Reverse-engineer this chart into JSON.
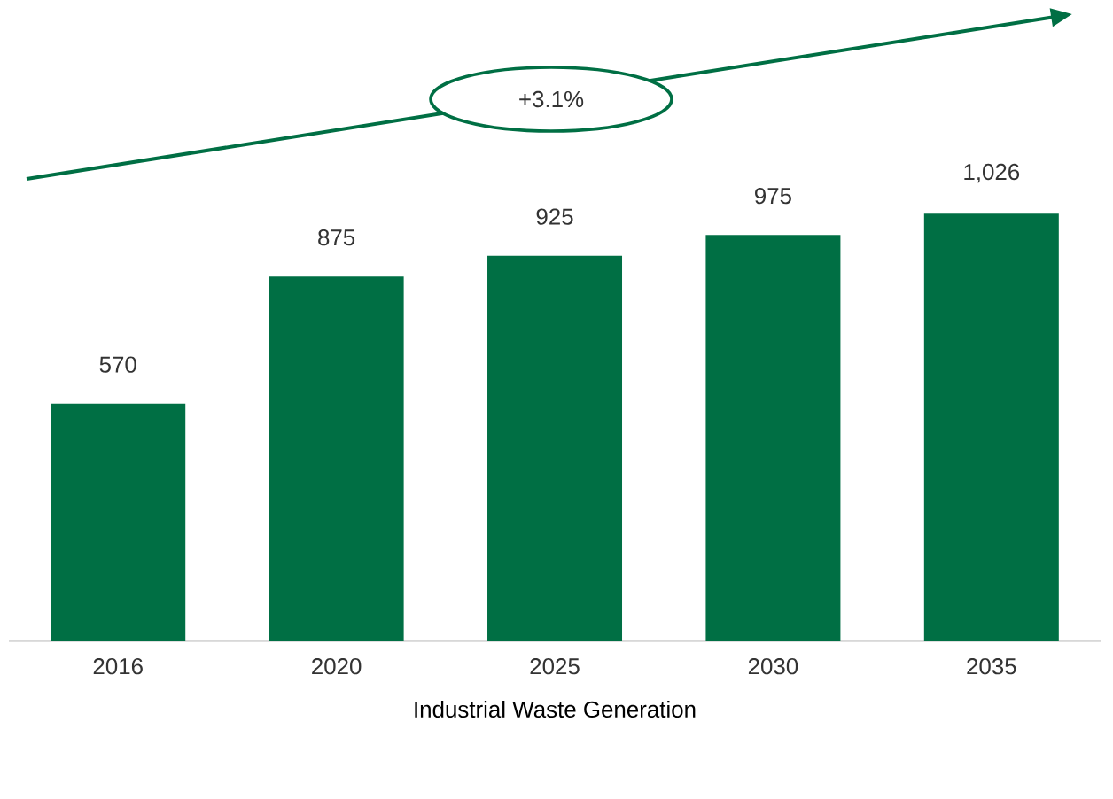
{
  "chart_data": {
    "type": "bar",
    "xlabel": "Industrial  Waste Generation",
    "categories": [
      "2016",
      "2020",
      "2025",
      "2030",
      "2035"
    ],
    "values": [
      570,
      875,
      925,
      975,
      1026
    ],
    "value_labels": [
      "570",
      "875",
      "925",
      "975",
      "1,026"
    ],
    "color": "#006f44",
    "annotations": [
      "+3.1%"
    ]
  }
}
